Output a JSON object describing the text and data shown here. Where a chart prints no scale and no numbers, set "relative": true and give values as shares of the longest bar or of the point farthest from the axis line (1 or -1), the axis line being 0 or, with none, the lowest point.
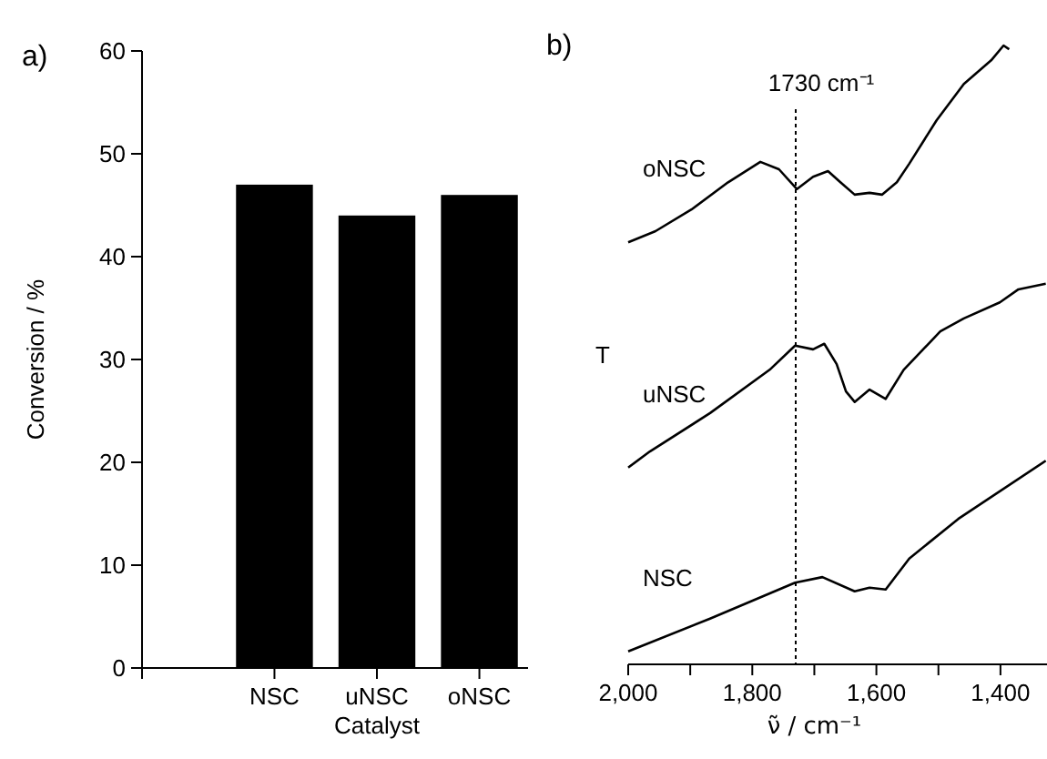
{
  "chart_data": [
    {
      "type": "bar",
      "title": "a)",
      "categories": [
        "NSC",
        "uNSC",
        "oNSC"
      ],
      "values": [
        47,
        44,
        46
      ],
      "color": "#000000",
      "xlabel": "Catalyst",
      "ylabel": "Conversion / %",
      "ylim": [
        0,
        60
      ],
      "yticks": [
        0,
        10,
        20,
        30,
        40,
        50,
        60
      ]
    },
    {
      "type": "line",
      "title": "b)",
      "xlabel": "ν̃ / cm⁻¹",
      "ylabel": "T",
      "relative": true,
      "xlim": [
        2000,
        1325
      ],
      "xticks": [
        {
          "value": 2000,
          "label": "2,000"
        },
        {
          "value": 1900,
          "label": null
        },
        {
          "value": 1800,
          "label": "1,800"
        },
        {
          "value": 1700,
          "label": null
        },
        {
          "value": 1600,
          "label": "1,600"
        },
        {
          "value": 1500,
          "label": null
        },
        {
          "value": 1400,
          "label": "1,400"
        }
      ],
      "ref_lines": [
        {
          "axis": "x",
          "value": 1730,
          "label": "1730 cm⁻¹",
          "line_style": "dotted",
          "color": "#000000"
        }
      ],
      "series": [
        {
          "name": "oNSC",
          "color": "#000000",
          "x": [
            2000,
            1956,
            1898,
            1839,
            1787,
            1757,
            1728,
            1702,
            1678,
            1658,
            1635,
            1611,
            1591,
            1567,
            1547,
            1503,
            1459,
            1415,
            1395,
            1386
          ],
          "values": [
            0.682,
            0.7,
            0.735,
            0.779,
            0.812,
            0.8,
            0.768,
            0.788,
            0.797,
            0.779,
            0.759,
            0.762,
            0.759,
            0.779,
            0.809,
            0.879,
            0.938,
            0.976,
            1.0,
            0.994
          ]
        },
        {
          "name": "uNSC",
          "color": "#000000",
          "x": [
            2000,
            1965,
            1868,
            1772,
            1731,
            1702,
            1684,
            1664,
            1649,
            1635,
            1611,
            1585,
            1556,
            1497,
            1459,
            1401,
            1371,
            1327
          ],
          "values": [
            0.318,
            0.344,
            0.406,
            0.476,
            0.515,
            0.509,
            0.518,
            0.485,
            0.441,
            0.424,
            0.444,
            0.429,
            0.476,
            0.538,
            0.559,
            0.585,
            0.606,
            0.615
          ]
        },
        {
          "name": "NSC",
          "color": "#000000",
          "x": [
            2000,
            1868,
            1731,
            1687,
            1635,
            1611,
            1585,
            1547,
            1468,
            1327
          ],
          "values": [
            0.021,
            0.074,
            0.132,
            0.141,
            0.118,
            0.124,
            0.121,
            0.171,
            0.235,
            0.329
          ]
        }
      ]
    }
  ]
}
